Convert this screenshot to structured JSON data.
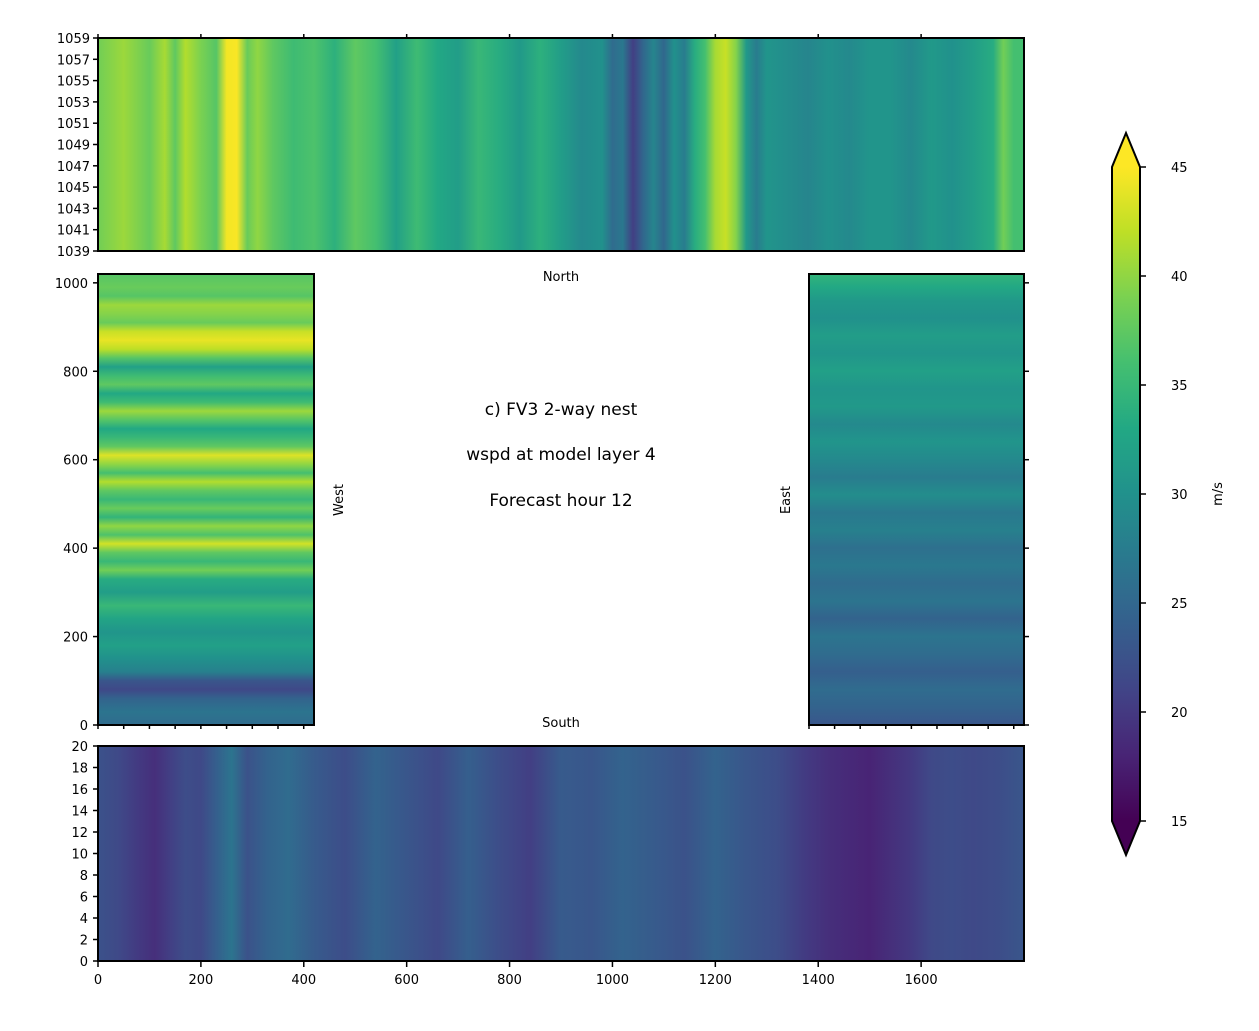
{
  "chart_data": [
    {
      "panel": "north",
      "type": "heatmap",
      "title": "North",
      "xlim": [
        0,
        1800
      ],
      "ylim": [
        1039,
        1059
      ],
      "x_ticks": [
        0,
        200,
        400,
        600,
        800,
        1000,
        1200,
        1400,
        1600
      ],
      "y_ticks": [
        1039,
        1041,
        1043,
        1045,
        1047,
        1049,
        1051,
        1053,
        1055,
        1057,
        1059
      ],
      "orientation": "columns",
      "profile_positions": [
        0,
        50,
        100,
        130,
        150,
        170,
        200,
        230,
        250,
        270,
        290,
        310,
        340,
        380,
        420,
        460,
        500,
        540,
        580,
        620,
        660,
        700,
        740,
        780,
        820,
        860,
        900,
        940,
        980,
        1000,
        1020,
        1040,
        1060,
        1080,
        1100,
        1120,
        1140,
        1160,
        1180,
        1200,
        1220,
        1240,
        1260,
        1280,
        1300,
        1340,
        1380,
        1420,
        1460,
        1500,
        1540,
        1580,
        1620,
        1660,
        1700,
        1740,
        1760,
        1780,
        1800
      ],
      "profile_values": [
        38.5,
        40.5,
        38.0,
        41.0,
        37.5,
        41.5,
        39.0,
        37.0,
        44.5,
        44.8,
        38.0,
        40.0,
        37.5,
        35.5,
        36.5,
        34.0,
        37.5,
        36.0,
        32.0,
        35.5,
        33.0,
        31.5,
        35.0,
        33.5,
        31.0,
        34.0,
        31.5,
        29.0,
        30.0,
        25.5,
        27.0,
        20.5,
        25.0,
        28.5,
        25.0,
        30.0,
        27.5,
        33.5,
        36.0,
        41.0,
        42.5,
        39.5,
        31.0,
        27.5,
        30.5,
        29.5,
        28.5,
        30.0,
        29.0,
        30.5,
        30.5,
        29.0,
        31.0,
        30.0,
        31.5,
        33.5,
        38.5,
        36.0,
        36.0
      ]
    },
    {
      "panel": "west",
      "type": "heatmap",
      "label": "West",
      "xlim": [
        0,
        420
      ],
      "ylim": [
        0,
        1020
      ],
      "x_ticks": [
        0,
        200,
        400
      ],
      "y_ticks": [
        0,
        200,
        400,
        600,
        800,
        1000
      ],
      "orientation": "rows",
      "profile_positions": [
        0,
        30,
        60,
        80,
        100,
        120,
        150,
        180,
        210,
        240,
        270,
        300,
        330,
        350,
        370,
        390,
        410,
        430,
        450,
        470,
        490,
        510,
        530,
        550,
        570,
        590,
        610,
        630,
        650,
        670,
        690,
        710,
        730,
        750,
        770,
        790,
        810,
        830,
        850,
        870,
        890,
        910,
        930,
        950,
        970,
        990,
        1020
      ],
      "profile_values": [
        25.5,
        26.5,
        24.5,
        21.5,
        23.0,
        28.0,
        30.0,
        32.0,
        30.5,
        32.5,
        35.0,
        31.5,
        33.5,
        38.5,
        35.0,
        37.5,
        43.0,
        36.5,
        40.0,
        34.5,
        38.0,
        35.0,
        37.5,
        41.5,
        36.0,
        40.0,
        43.5,
        37.5,
        35.0,
        33.0,
        37.0,
        40.5,
        35.5,
        33.0,
        37.5,
        35.5,
        32.0,
        37.0,
        42.0,
        44.0,
        42.5,
        38.0,
        39.5,
        40.5,
        37.0,
        38.0,
        37.0
      ]
    },
    {
      "panel": "east",
      "type": "heatmap",
      "label": "East",
      "xlim": [
        0,
        420
      ],
      "ylim": [
        0,
        1020
      ],
      "x_ticks": [],
      "y_ticks": [
        0,
        200,
        400,
        600,
        800,
        1000
      ],
      "orientation": "rows",
      "profile_positions": [
        0,
        40,
        80,
        120,
        160,
        200,
        240,
        280,
        320,
        360,
        400,
        440,
        480,
        520,
        560,
        600,
        640,
        680,
        720,
        760,
        800,
        840,
        880,
        920,
        960,
        990,
        1020
      ],
      "profile_values": [
        23.0,
        24.5,
        25.5,
        24.0,
        25.5,
        26.5,
        24.5,
        26.5,
        25.5,
        27.0,
        26.0,
        28.0,
        27.0,
        29.5,
        27.5,
        29.0,
        30.5,
        29.0,
        31.0,
        30.5,
        32.0,
        30.5,
        31.5,
        30.0,
        31.0,
        33.0,
        34.5
      ]
    },
    {
      "panel": "south",
      "type": "heatmap",
      "title": "South",
      "xlim": [
        0,
        1800
      ],
      "ylim": [
        0,
        20
      ],
      "x_ticks": [
        0,
        200,
        400,
        600,
        800,
        1000,
        1200,
        1400,
        1600
      ],
      "y_ticks": [
        0,
        2,
        4,
        6,
        8,
        10,
        12,
        14,
        16,
        18,
        20
      ],
      "orientation": "columns",
      "profile_positions": [
        0,
        40,
        80,
        110,
        140,
        170,
        200,
        230,
        260,
        290,
        330,
        370,
        420,
        480,
        540,
        600,
        660,
        720,
        780,
        840,
        900,
        960,
        1020,
        1080,
        1140,
        1200,
        1260,
        1320,
        1380,
        1420,
        1460,
        1500,
        1540,
        1580,
        1620,
        1660,
        1700,
        1750,
        1800
      ],
      "profile_values": [
        22.5,
        21.5,
        20.0,
        19.0,
        20.5,
        22.0,
        21.5,
        24.0,
        26.5,
        22.5,
        24.5,
        25.5,
        23.5,
        22.0,
        24.5,
        23.0,
        21.5,
        24.0,
        22.0,
        20.5,
        23.5,
        23.0,
        24.5,
        23.5,
        22.5,
        24.5,
        23.0,
        22.0,
        20.0,
        19.0,
        18.5,
        18.0,
        19.0,
        20.0,
        21.5,
        22.0,
        21.5,
        22.0,
        23.0
      ]
    }
  ],
  "annotation": {
    "line1": "c) FV3 2-way nest",
    "line2": "wspd at model layer 4",
    "line3": "Forecast hour 12"
  },
  "colorbar": {
    "colormap": "viridis",
    "vmin": 15,
    "vmax": 45,
    "extend": "both",
    "ticks": [
      15,
      20,
      25,
      30,
      35,
      40,
      45
    ],
    "label": "m/s"
  }
}
